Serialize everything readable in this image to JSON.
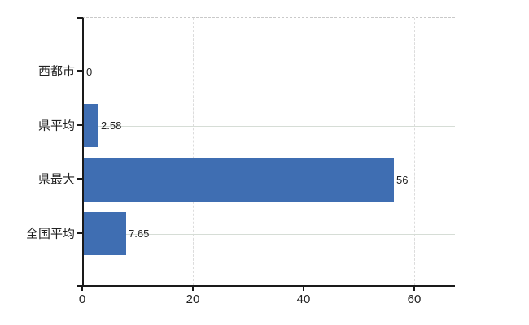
{
  "chart_data": {
    "type": "bar",
    "orientation": "horizontal",
    "title": "",
    "xlabel": "",
    "ylabel": "",
    "categories": [
      "西都市",
      "県平均",
      "県最大",
      "全国平均"
    ],
    "values": [
      0,
      2.58,
      56,
      7.65
    ],
    "value_labels": [
      "0",
      "2.58",
      "56",
      "7.65"
    ],
    "x_ticks": [
      0,
      20,
      40,
      60
    ],
    "x_tick_labels": [
      "0",
      "20",
      "40",
      "60"
    ],
    "xlim": [
      0,
      67.2
    ],
    "grid": "on",
    "legend": "none",
    "bar_color": "#3f6eb2"
  },
  "colors": {
    "background": "#ffffff",
    "bar": "#3f6eb2",
    "axis": "#1a1a1a",
    "hgrid": "#d6ddd6",
    "vgrid": "#dcdcdc",
    "top_border": "#c9c9c9",
    "text": "#222222"
  }
}
